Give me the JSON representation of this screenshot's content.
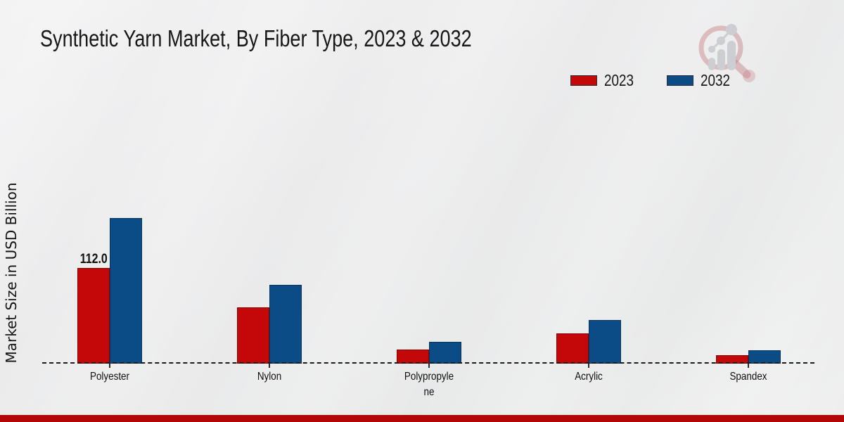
{
  "title": "Synthetic Yarn Market, By Fiber Type, 2023 & 2032",
  "y_axis_label": "Market Size in USD Billion",
  "legend": {
    "items": [
      {
        "label": "2023",
        "color": "#c40708"
      },
      {
        "label": "2032",
        "color": "#0b4c87"
      }
    ]
  },
  "footer_bar_color": "#b30606",
  "chart_data": {
    "type": "bar",
    "title": "Synthetic Yarn Market, By Fiber Type, 2023 & 2032",
    "xlabel": "",
    "ylabel": "Market Size in USD Billion",
    "categories": [
      "Polyester",
      "Nylon",
      "Polypropylene",
      "Acrylic",
      "Spandex"
    ],
    "series": [
      {
        "name": "2023",
        "color": "#c40708",
        "values": [
          112.0,
          66.0,
          16.5,
          35.0,
          10.0
        ]
      },
      {
        "name": "2032",
        "color": "#0b4c87",
        "values": [
          170.5,
          92.0,
          25.5,
          51.0,
          16.0
        ]
      }
    ],
    "data_labels": [
      {
        "category": "Polyester",
        "series": "2023",
        "text": "112.0"
      }
    ],
    "ylim": [
      0,
      185
    ],
    "grid": false,
    "y_axis_ticks_visible": false,
    "baseline_style": "dashed",
    "legend_position": "top-right"
  }
}
